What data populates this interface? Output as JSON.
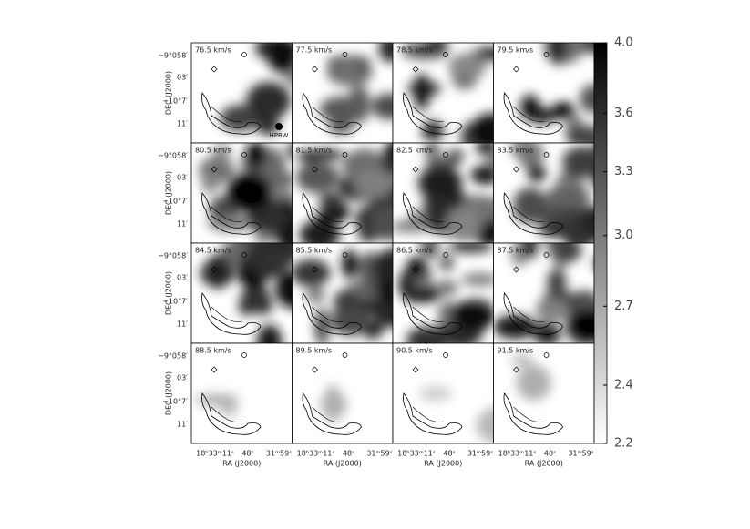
{
  "chart_data": {
    "type": "channel-map",
    "panels": [
      "76.5 km/s",
      "77.5 km/s",
      "78.5 km/s",
      "79.5 km/s",
      "80.5 km/s",
      "81.5 km/s",
      "82.5 km/s",
      "83.5 km/s",
      "84.5 km/s",
      "85.5 km/s",
      "86.5 km/s",
      "87.5 km/s",
      "88.5 km/s",
      "89.5 km/s",
      "90.5 km/s",
      "91.5 km/s"
    ],
    "beam_label": "HPBW",
    "ylabel": "DEC (J2000)",
    "xlabel": "RA (J2000)",
    "ytick_labels": [
      "−9°058′",
      "03′",
      "−10°7′",
      "11′"
    ],
    "xtick_labels": [
      "18ʰ33ᵐ11ˢ",
      "48ˢ",
      "31ᵐ59ˢ"
    ],
    "colorbar": {
      "zlim": [
        2.2,
        4.0
      ],
      "log": true,
      "zticks": [
        {
          "value": 2.2,
          "label": "2.2"
        },
        {
          "value": 2.4,
          "label": "2.4"
        },
        {
          "value": 2.7,
          "label": "2.7"
        },
        {
          "value": 3.0,
          "label": "3.0"
        },
        {
          "value": 3.3,
          "label": "3.3"
        },
        {
          "value": 3.6,
          "label": "3.6"
        },
        {
          "value": 4.0,
          "label": "4.0"
        }
      ],
      "colors": [
        "#ffffff",
        "#000000"
      ]
    }
  }
}
